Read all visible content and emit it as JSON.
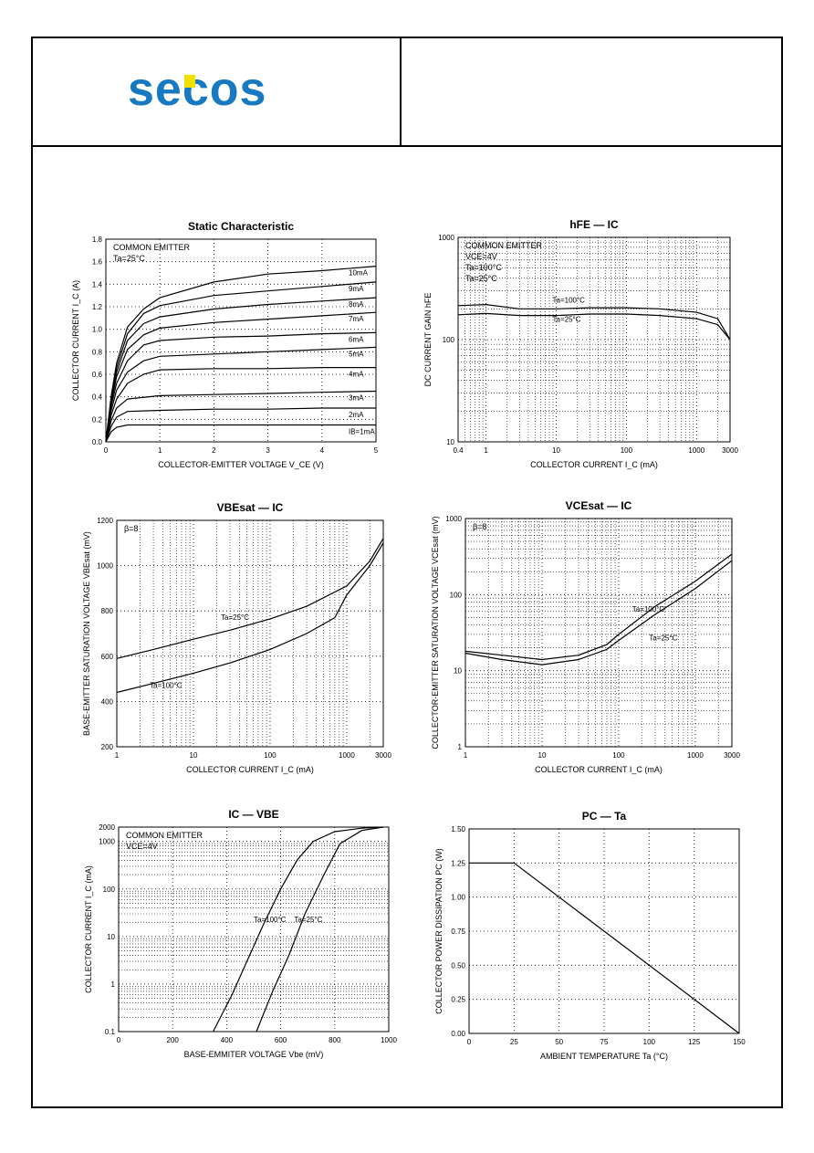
{
  "logo": {
    "text": "secos",
    "colors": {
      "letters": "#1779c2",
      "accent": "#f2e000"
    }
  },
  "charts": [
    {
      "id": "c1",
      "title": "Static Characteristic",
      "xlabel": "COLLECTOR-EMITTER VOLTAGE  V_CE (V)",
      "ylabel": "COLLECTOR CURRENT  I_C  (A)",
      "annotations": [
        "COMMON EMITTER",
        "Ta=25°C"
      ],
      "xticks": [
        "0",
        "1",
        "2",
        "3",
        "4",
        "5"
      ],
      "yticks": [
        "0.0",
        "0.2",
        "0.4",
        "0.6",
        "0.8",
        "1.0",
        "1.2",
        "1.4",
        "1.6",
        "1.8"
      ]
    },
    {
      "id": "c2",
      "title": "hFE — IC",
      "xlabel": "COLLECTOR CURRENT  I_C  (mA)",
      "ylabel": "DC CURRENT GAIN  hFE",
      "annotations": [
        "COMMON EMITTER",
        "VCE=4V",
        "Ta=100°C",
        "Ta=25°C"
      ],
      "xticks": [
        "0.4",
        "1",
        "10",
        "100",
        "1000",
        "3000"
      ],
      "yticks": [
        "10",
        "100",
        "1000"
      ]
    },
    {
      "id": "c3",
      "title": "VBEsat — IC",
      "xlabel": "COLLECTOR CURRENT  I_C  (mA)",
      "ylabel": "BASE-EMITTER SATURATION VOLTAGE  VBEsat  (mV)",
      "annotations": [
        "β=8",
        "Ta=25°C",
        "Ta=100°C"
      ],
      "xticks": [
        "1",
        "10",
        "100",
        "1000",
        "3000"
      ],
      "yticks": [
        "200",
        "400",
        "600",
        "800",
        "1000",
        "1200"
      ]
    },
    {
      "id": "c4",
      "title": "VCEsat — IC",
      "xlabel": "COLLECTOR CURRENT  I_C  (mA)",
      "ylabel": "COLLECTOR-EMITTER SATURATION VOLTAGE  VCEsat  (mV)",
      "annotations": [
        "β=8",
        "Ta=100°C",
        "Ta=25°C"
      ],
      "xticks": [
        "1",
        "10",
        "100",
        "1000",
        "3000"
      ],
      "yticks": [
        "1",
        "10",
        "100",
        "1000"
      ]
    },
    {
      "id": "c5",
      "title": "IC — VBE",
      "xlabel": "BASE-EMMITER VOLTAGE  Vbe (mV)",
      "ylabel": "COLLECTOR CURRENT  I_C  (mA)",
      "annotations": [
        "COMMON EMITTER",
        "VCE=4V",
        "Ta=100°C",
        "Ta=25°C"
      ],
      "xticks": [
        "0",
        "200",
        "400",
        "600",
        "800",
        "1000"
      ],
      "yticks": [
        "0.1",
        "1",
        "10",
        "100",
        "1000",
        "2000"
      ]
    },
    {
      "id": "c6",
      "title": "PC — Ta",
      "xlabel": "AMBIENT TEMPERATURE  Ta  (°C)",
      "ylabel": "COLLECTOR POWER DISSIPATION  PC (W)",
      "annotations": [],
      "xticks": [
        "0",
        "25",
        "50",
        "75",
        "100",
        "125",
        "150"
      ],
      "yticks": [
        "0.00",
        "0.25",
        "0.50",
        "0.75",
        "1.00",
        "1.25",
        "1.50"
      ]
    }
  ],
  "chart_data": [
    {
      "type": "line",
      "title": "Static Characteristic",
      "xlabel": "COLLECTOR-EMITTER VOLTAGE V_CE (V)",
      "ylabel": "COLLECTOR CURRENT I_C (A)",
      "xlim": [
        0,
        5
      ],
      "ylim": [
        0,
        1.8
      ],
      "series": [
        {
          "name": "IB=1mA",
          "x": [
            0,
            0.1,
            0.2,
            0.4,
            1,
            2,
            3,
            4,
            5
          ],
          "y": [
            0,
            0.09,
            0.13,
            0.15,
            0.15,
            0.15,
            0.15,
            0.15,
            0.15
          ]
        },
        {
          "name": "2mA",
          "x": [
            0,
            0.1,
            0.2,
            0.4,
            1,
            2,
            3,
            4,
            5
          ],
          "y": [
            0,
            0.14,
            0.22,
            0.27,
            0.28,
            0.29,
            0.29,
            0.3,
            0.3
          ]
        },
        {
          "name": "3mA",
          "x": [
            0,
            0.1,
            0.2,
            0.4,
            1,
            2,
            3,
            4,
            5
          ],
          "y": [
            0,
            0.19,
            0.3,
            0.38,
            0.41,
            0.42,
            0.43,
            0.44,
            0.45
          ]
        },
        {
          "name": "4mA",
          "x": [
            0,
            0.1,
            0.2,
            0.4,
            0.7,
            1,
            2,
            3,
            4,
            5
          ],
          "y": [
            0,
            0.24,
            0.38,
            0.52,
            0.6,
            0.64,
            0.65,
            0.65,
            0.66,
            0.66
          ]
        },
        {
          "name": "5mA",
          "x": [
            0,
            0.1,
            0.2,
            0.4,
            0.7,
            1,
            2,
            3,
            4,
            5
          ],
          "y": [
            0,
            0.28,
            0.46,
            0.62,
            0.72,
            0.76,
            0.78,
            0.8,
            0.82,
            0.84
          ]
        },
        {
          "name": "6mA",
          "x": [
            0,
            0.1,
            0.2,
            0.4,
            0.7,
            1,
            2,
            3,
            4,
            5
          ],
          "y": [
            0,
            0.32,
            0.52,
            0.72,
            0.86,
            0.9,
            0.93,
            0.94,
            0.96,
            0.97
          ]
        },
        {
          "name": "7mA",
          "x": [
            0,
            0.1,
            0.2,
            0.4,
            0.7,
            1,
            2,
            3,
            4,
            5
          ],
          "y": [
            0,
            0.35,
            0.58,
            0.82,
            0.95,
            1.01,
            1.06,
            1.09,
            1.12,
            1.15
          ]
        },
        {
          "name": "8mA",
          "x": [
            0,
            0.1,
            0.2,
            0.4,
            0.7,
            1,
            2,
            3,
            4,
            5
          ],
          "y": [
            0,
            0.37,
            0.62,
            0.9,
            1.05,
            1.11,
            1.18,
            1.22,
            1.25,
            1.28
          ]
        },
        {
          "name": "9mA",
          "x": [
            0,
            0.1,
            0.2,
            0.4,
            0.7,
            1,
            2,
            3,
            4,
            5
          ],
          "y": [
            0,
            0.39,
            0.66,
            0.96,
            1.14,
            1.21,
            1.3,
            1.34,
            1.38,
            1.42
          ]
        },
        {
          "name": "10mA",
          "x": [
            0,
            0.1,
            0.2,
            0.4,
            0.7,
            1,
            2,
            3,
            4,
            5
          ],
          "y": [
            0,
            0.41,
            0.7,
            1.02,
            1.18,
            1.28,
            1.42,
            1.49,
            1.52,
            1.56
          ]
        }
      ]
    },
    {
      "type": "line",
      "title": "hFE — IC",
      "xscale": "log",
      "yscale": "log",
      "xlim": [
        0.4,
        3000
      ],
      "ylim": [
        10,
        1000
      ],
      "series": [
        {
          "name": "Ta=100°C",
          "x": [
            0.4,
            1,
            3,
            10,
            30,
            100,
            300,
            1000,
            2000,
            3000
          ],
          "y": [
            215,
            220,
            200,
            200,
            205,
            205,
            200,
            185,
            160,
            100
          ]
        },
        {
          "name": "Ta=25°C",
          "x": [
            0.4,
            1,
            3,
            10,
            30,
            100,
            300,
            1000,
            2000,
            3000
          ],
          "y": [
            175,
            180,
            172,
            172,
            178,
            178,
            172,
            160,
            140,
            100
          ]
        }
      ]
    },
    {
      "type": "line",
      "title": "VBEsat — IC",
      "xscale": "log",
      "xlim": [
        1,
        3000
      ],
      "ylim": [
        200,
        1200
      ],
      "series": [
        {
          "name": "Ta=25°C",
          "x": [
            1,
            3,
            10,
            30,
            100,
            300,
            1000,
            2000,
            3000
          ],
          "y": [
            590,
            630,
            675,
            715,
            765,
            820,
            910,
            1020,
            1120
          ]
        },
        {
          "name": "Ta=100°C",
          "x": [
            1,
            3,
            10,
            30,
            100,
            300,
            700,
            1000,
            2000,
            3000
          ],
          "y": [
            440,
            480,
            525,
            570,
            630,
            700,
            770,
            870,
            1000,
            1100
          ]
        }
      ]
    },
    {
      "type": "line",
      "title": "VCEsat — IC",
      "xscale": "log",
      "yscale": "log",
      "xlim": [
        1,
        3000
      ],
      "ylim": [
        1,
        1000
      ],
      "series": [
        {
          "name": "Ta=100°C",
          "x": [
            1,
            3,
            10,
            30,
            70,
            100,
            300,
            1000,
            3000
          ],
          "y": [
            18,
            16,
            14,
            16,
            22,
            30,
            70,
            150,
            340
          ]
        },
        {
          "name": "Ta=25°C",
          "x": [
            1,
            3,
            10,
            30,
            70,
            100,
            300,
            1000,
            3000
          ],
          "y": [
            17,
            14,
            12,
            14,
            19,
            25,
            55,
            120,
            280
          ]
        }
      ]
    },
    {
      "type": "line",
      "title": "IC — VBE",
      "yscale": "log",
      "xlim": [
        0,
        1000
      ],
      "ylim": [
        0.1,
        2000
      ],
      "series": [
        {
          "name": "Ta=100°C",
          "x": [
            350,
            420,
            480,
            540,
            600,
            660,
            720,
            800,
            900,
            980
          ],
          "y": [
            0.1,
            0.6,
            3.5,
            20,
            100,
            400,
            1000,
            1600,
            1900,
            2000
          ]
        },
        {
          "name": "Ta=25°C",
          "x": [
            510,
            570,
            630,
            690,
            760,
            820,
            900,
            980
          ],
          "y": [
            0.1,
            0.7,
            4,
            30,
            200,
            900,
            1700,
            2000
          ]
        }
      ]
    },
    {
      "type": "line",
      "title": "PC — Ta",
      "xlim": [
        0,
        150
      ],
      "ylim": [
        0,
        1.5
      ],
      "series": [
        {
          "name": "",
          "x": [
            0,
            25,
            150
          ],
          "y": [
            1.25,
            1.25,
            0
          ]
        }
      ]
    }
  ]
}
